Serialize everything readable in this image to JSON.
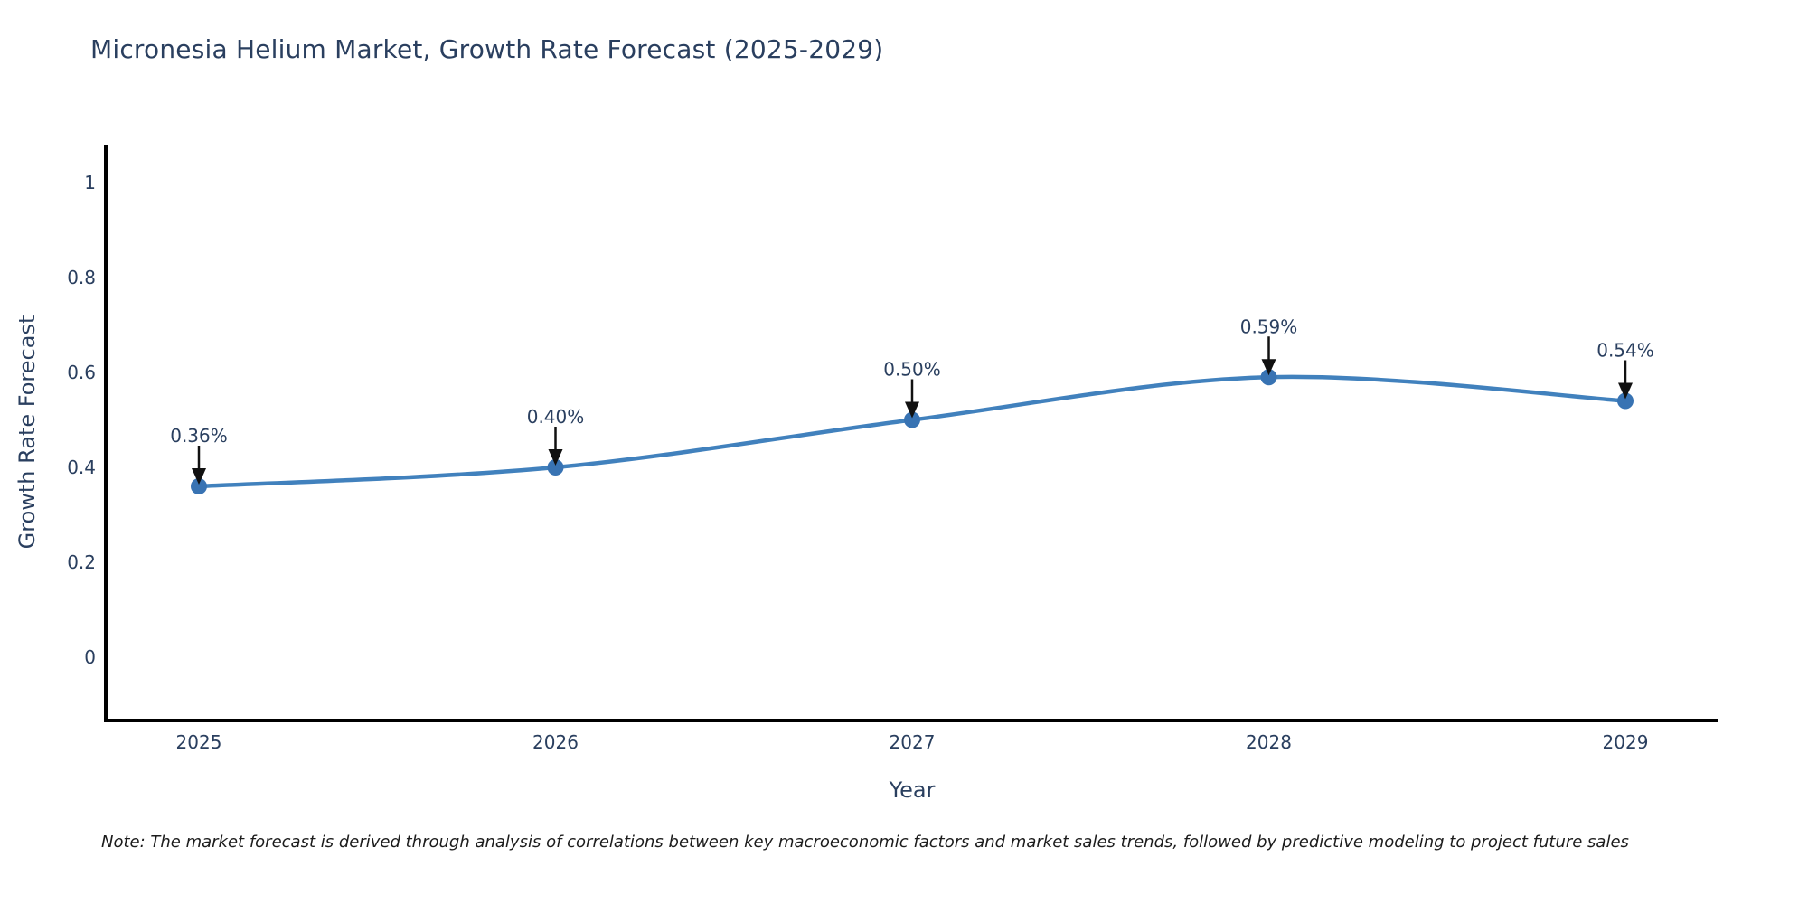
{
  "chart": {
    "note": "Note: The market forecast is derived through analysis of correlations between key macroeconomic factors and market sales trends, followed by predictive modeling to project future sales"
  },
  "chart_data": {
    "type": "line",
    "title": "Micronesia Helium Market, Growth Rate Forecast (2025-2029)",
    "xlabel": "Year",
    "ylabel": "Growth Rate Forecast",
    "categories": [
      "2025",
      "2026",
      "2027",
      "2028",
      "2029"
    ],
    "series": [
      {
        "name": "Growth Rate Forecast",
        "values": [
          0.36,
          0.4,
          0.5,
          0.59,
          0.54
        ]
      }
    ],
    "point_labels": [
      "0.36%",
      "0.40%",
      "0.50%",
      "0.59%",
      "0.54%"
    ],
    "y_ticks": [
      0,
      0.2,
      0.4,
      0.6,
      0.8,
      1
    ],
    "y_tick_labels": [
      "0",
      "0.2",
      "0.4",
      "0.6",
      "0.8",
      "1"
    ],
    "ylim": [
      -0.13,
      1.08
    ],
    "grid": false,
    "legend": "none",
    "line_shape": "spline",
    "colors": {
      "line": "#4181bd",
      "marker": "#3873b3",
      "axis": "#000000",
      "text": "#2a3f5f",
      "annotation_arrow": "#111111"
    }
  }
}
